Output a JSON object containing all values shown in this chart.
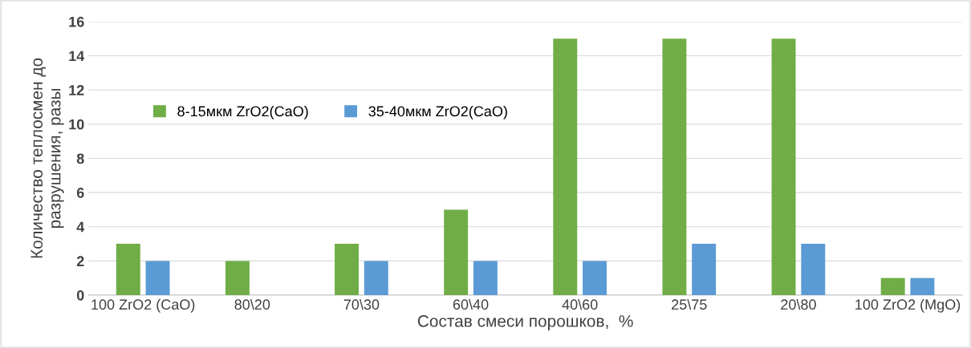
{
  "chart_data": {
    "type": "bar",
    "xlabel": "Состав смеси порошков,  %",
    "ylabel": "Количество теплосмен до\nразрушения, разы",
    "categories": [
      "100 ZrO2 (CaO)",
      "80\\20",
      "70\\30",
      "60\\40",
      "40\\60",
      "25\\75",
      "20\\80",
      "100 ZrO2 (MgO)"
    ],
    "series": [
      {
        "name": "8-15мкм ZrO2(CaO)",
        "color": "#70ad47",
        "values": [
          3,
          2,
          3,
          5,
          15,
          15,
          15,
          1
        ]
      },
      {
        "name": "35-40мкм ZrO2(CaO)",
        "color": "#5b9bd5",
        "values": [
          2,
          null,
          2,
          2,
          2,
          3,
          3,
          1
        ]
      }
    ],
    "ylim": [
      0,
      16
    ],
    "yticks": [
      0,
      2,
      4,
      6,
      8,
      10,
      12,
      14,
      16
    ],
    "grid": "y",
    "legend": "top left"
  }
}
